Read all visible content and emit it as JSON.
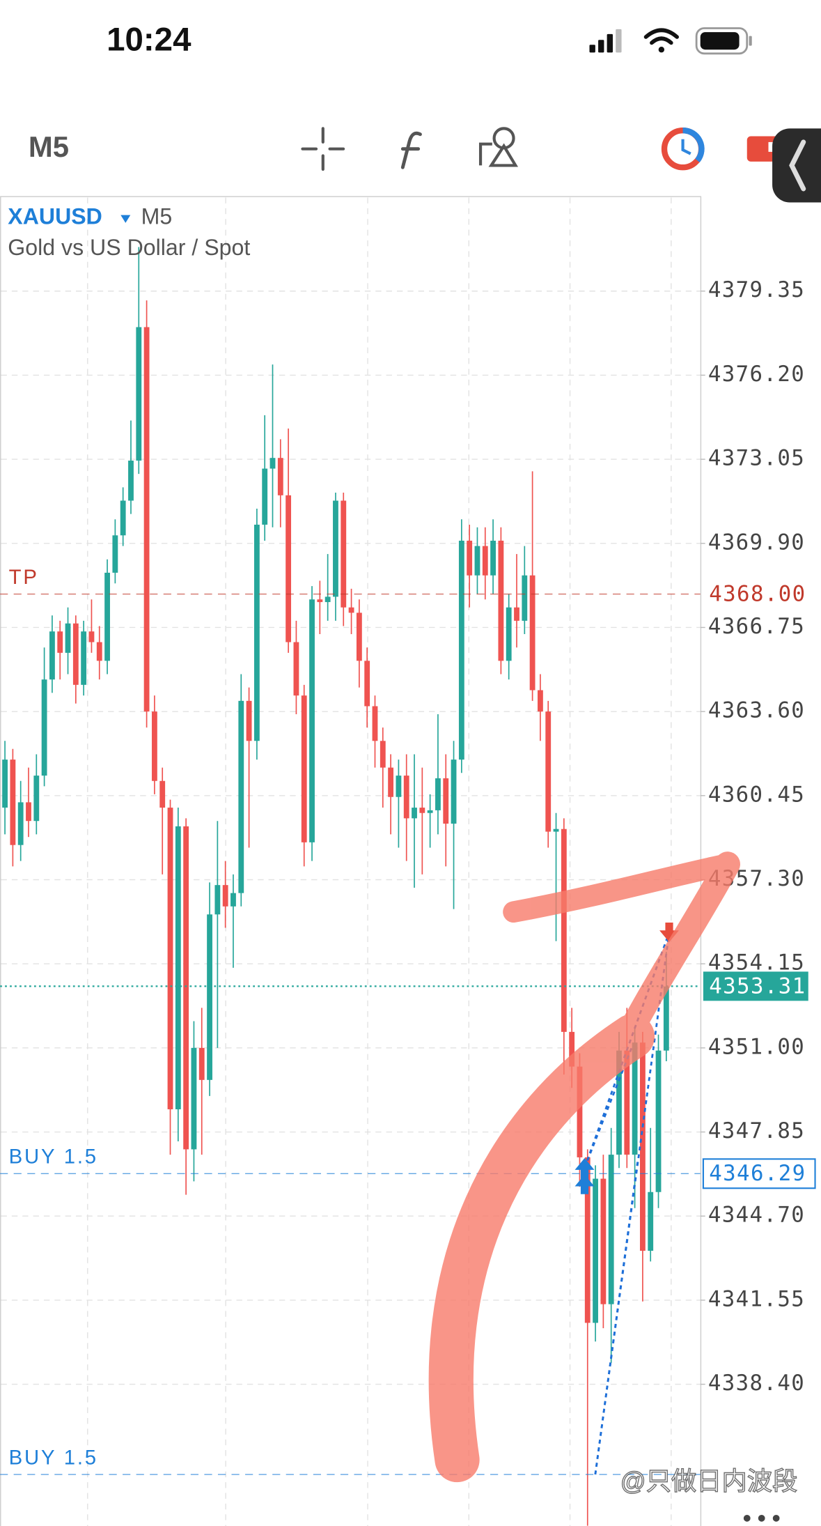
{
  "status_bar": {
    "time": "10:24"
  },
  "toolbar": {
    "timeframe": "M5"
  },
  "chart_data": {
    "type": "candlestick",
    "symbol": "XAUUSD",
    "timeframe": "M5",
    "subtitle": "Gold vs US Dollar / Spot",
    "up_color": "#26a69a",
    "down_color": "#ef5350",
    "grid": true,
    "ylim": [
      4333.09,
      4382.89
    ],
    "yticks": [
      4379.35,
      {
        "value": 4376.2,
        "label": "4376.20"
      },
      4373.05,
      {
        "value": 4369.9,
        "label": "4369.90"
      },
      4366.75,
      {
        "value": 4363.6,
        "label": "4363.60"
      },
      4360.45,
      {
        "value": 4357.3,
        "label": "4357.30"
      },
      4354.15,
      {
        "value": 4351,
        "label": "4351.00"
      },
      4347.85,
      {
        "value": 4344.7,
        "label": "4344.70"
      },
      4341.55,
      {
        "value": 4338.4,
        "label": "4338.40"
      }
    ],
    "levels": [
      {
        "name": "TP",
        "value": 4368,
        "value_label": "4368.00",
        "color": "#c0392b",
        "style": "text"
      },
      {
        "value": 4353.31,
        "color": "#26a69a",
        "style": "filled"
      },
      {
        "name": "BUY 1.5",
        "value": 4346.29,
        "color": "#1e7fd8",
        "style": "outlined"
      },
      {
        "name": "BUY 1.5",
        "value": 4335.02,
        "color": "#1e7fd8",
        "style": "none"
      }
    ],
    "open": [
      4360.0,
      4361.8,
      4358.6,
      4360.2,
      4359.5,
      4361.2,
      4364.8,
      4366.6,
      4365.8,
      4366.9,
      4364.6,
      4366.6,
      4366.2,
      4365.5,
      4368.8,
      4370.2,
      4371.5,
      4373.0,
      4378.0,
      4363.6,
      4361.0,
      4360.0,
      4348.7,
      4359.3,
      4347.2,
      4351.0,
      4349.8,
      4356.0,
      4357.1,
      4356.3,
      4356.8,
      4364.0,
      4362.5,
      4370.6,
      4372.7,
      4373.1,
      4371.7,
      4366.2,
      4364.2,
      4358.7,
      4367.8,
      4367.7,
      4367.9,
      4371.5,
      4367.5,
      4367.3,
      4365.5,
      4363.8,
      4362.5,
      4361.5,
      4360.4,
      4361.2,
      4359.6,
      4360.0,
      4359.8,
      4359.9,
      4361.1,
      4359.4,
      4361.8,
      4370.0,
      4368.7,
      4369.8,
      4368.7,
      4370.0,
      4365.5,
      4367.5,
      4367.0,
      4368.7,
      4364.4,
      4363.6,
      4359.1,
      4359.2,
      4351.6,
      4350.3,
      4346.9,
      4340.7,
      4346.1,
      4341.4,
      4347.0,
      4350.9,
      4347.0,
      4351.2,
      4343.4,
      4345.6,
      4350.9
    ],
    "high": [
      4362.5,
      4362.2,
      4361.0,
      4361.5,
      4362.0,
      4366.0,
      4367.2,
      4367.0,
      4367.5,
      4367.2,
      4367.0,
      4367.8,
      4366.8,
      4369.3,
      4370.8,
      4372.0,
      4374.5,
      4381.0,
      4379.0,
      4364.2,
      4361.5,
      4360.3,
      4360.0,
      4359.6,
      4352.0,
      4352.5,
      4357.2,
      4359.5,
      4358.0,
      4357.5,
      4365.0,
      4364.5,
      4371.2,
      4374.7,
      4376.6,
      4373.8,
      4374.2,
      4367.0,
      4364.6,
      4368.3,
      4368.5,
      4369.5,
      4371.8,
      4371.8,
      4368.2,
      4367.8,
      4366.0,
      4364.2,
      4363.0,
      4362.0,
      4361.8,
      4362.0,
      4362.0,
      4361.5,
      4360.5,
      4363.5,
      4362.0,
      4362.5,
      4370.8,
      4370.6,
      4370.5,
      4370.5,
      4370.8,
      4370.5,
      4368.0,
      4369.5,
      4369.8,
      4372.6,
      4365.0,
      4364.0,
      4359.8,
      4359.6,
      4352.5,
      4350.8,
      4347.2,
      4346.6,
      4347.0,
      4348.0,
      4351.6,
      4352.5,
      4351.8,
      4351.6,
      4348.0,
      4351.5,
      4354.6
    ],
    "low": [
      4359.0,
      4357.8,
      4358.0,
      4358.9,
      4359.0,
      4360.8,
      4364.3,
      4364.8,
      4365.0,
      4363.9,
      4364.2,
      4365.8,
      4364.8,
      4365.0,
      4368.4,
      4369.8,
      4371.0,
      4372.5,
      4363.0,
      4360.5,
      4357.5,
      4347.0,
      4347.5,
      4345.5,
      4346.0,
      4347.0,
      4349.2,
      4351.0,
      4355.5,
      4354.0,
      4356.3,
      4358.5,
      4361.8,
      4370.0,
      4370.5,
      4370.5,
      4365.8,
      4363.5,
      4357.8,
      4358.0,
      4366.5,
      4367.0,
      4367.0,
      4366.8,
      4366.5,
      4364.5,
      4363.0,
      4361.5,
      4360.0,
      4359.0,
      4358.5,
      4358.0,
      4357.0,
      4357.5,
      4358.5,
      4359.0,
      4357.8,
      4356.2,
      4361.3,
      4367.5,
      4368.0,
      4367.8,
      4368.0,
      4365.0,
      4364.8,
      4366.0,
      4366.5,
      4364.0,
      4362.5,
      4358.5,
      4355.0,
      4350.0,
      4349.5,
      4345.8,
      4333.1,
      4340.0,
      4340.5,
      4339.2,
      4346.5,
      4346.5,
      4345.0,
      4341.5,
      4343.0,
      4345.0,
      4350.5
    ],
    "close": [
      4361.8,
      4358.6,
      4360.2,
      4359.5,
      4361.2,
      4364.8,
      4366.6,
      4365.8,
      4366.9,
      4364.6,
      4366.6,
      4366.2,
      4365.5,
      4368.8,
      4370.2,
      4371.5,
      4373.0,
      4378.0,
      4363.6,
      4361.0,
      4360.0,
      4348.7,
      4359.3,
      4347.2,
      4351.0,
      4349.8,
      4356.0,
      4357.1,
      4356.3,
      4356.8,
      4364.0,
      4362.5,
      4370.6,
      4372.7,
      4373.1,
      4371.7,
      4366.2,
      4364.2,
      4358.7,
      4367.8,
      4367.7,
      4367.9,
      4371.5,
      4367.5,
      4367.3,
      4365.5,
      4363.8,
      4362.5,
      4361.5,
      4360.4,
      4361.2,
      4359.6,
      4360.0,
      4359.8,
      4359.9,
      4361.1,
      4359.4,
      4361.8,
      4370.0,
      4368.7,
      4369.8,
      4368.7,
      4370.0,
      4365.5,
      4367.5,
      4367.0,
      4368.7,
      4364.4,
      4363.6,
      4359.1,
      4359.2,
      4351.6,
      4350.3,
      4346.9,
      4340.7,
      4346.1,
      4341.4,
      4347.0,
      4350.9,
      4347.0,
      4351.2,
      4343.4,
      4345.6,
      4350.9,
      4353.3
    ]
  },
  "watermark": "@只做日内波段"
}
